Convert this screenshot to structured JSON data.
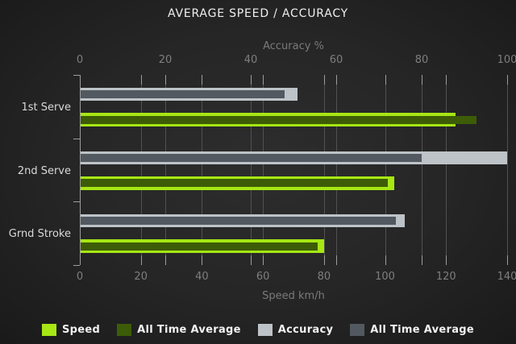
{
  "title": "AVERAGE SPEED / ACCURACY",
  "chart_data": {
    "type": "bar",
    "orientation": "horizontal",
    "categories": [
      "1st Serve",
      "2nd Serve",
      "Grnd Stroke"
    ],
    "series": [
      {
        "name": "Speed",
        "axis": "bottom",
        "values": [
          123,
          103,
          80
        ],
        "color": "#a6e714"
      },
      {
        "name": "All Time Average",
        "axis": "bottom",
        "values": [
          130,
          101,
          78
        ],
        "color": "#3d5c08"
      },
      {
        "name": "Accuracy",
        "axis": "top",
        "values": [
          51,
          100,
          76
        ],
        "color": "#bdc3c7"
      },
      {
        "name": "All Time Average",
        "axis": "top",
        "values": [
          48,
          80,
          74
        ],
        "color": "#525960"
      }
    ],
    "top_axis": {
      "label": "Accuracy %",
      "min": 0,
      "max": 100,
      "ticks": [
        0,
        20,
        40,
        60,
        80,
        100
      ]
    },
    "bottom_axis": {
      "label": "Speed km/h",
      "min": 0,
      "max": 140,
      "ticks": [
        0,
        20,
        40,
        60,
        80,
        100,
        120,
        140
      ]
    },
    "grid": true,
    "legend_position": "bottom"
  },
  "legend": {
    "items": [
      {
        "label": "Speed",
        "color": "#a6e714"
      },
      {
        "label": "All Time Average",
        "color": "#3d5c08"
      },
      {
        "label": "Accuracy",
        "color": "#bdc3c7"
      },
      {
        "label": "All Time Average",
        "color": "#525960"
      }
    ]
  },
  "colors": {
    "background_center": "#2d2d2d",
    "background_edge": "#151515",
    "title_text": "#efefef",
    "axis_text": "#7a7a7a",
    "category_text": "#d9d9d9",
    "gridline": "#515151",
    "axis_line": "#9c9c9c",
    "legend_text": "#f2f2f2"
  }
}
